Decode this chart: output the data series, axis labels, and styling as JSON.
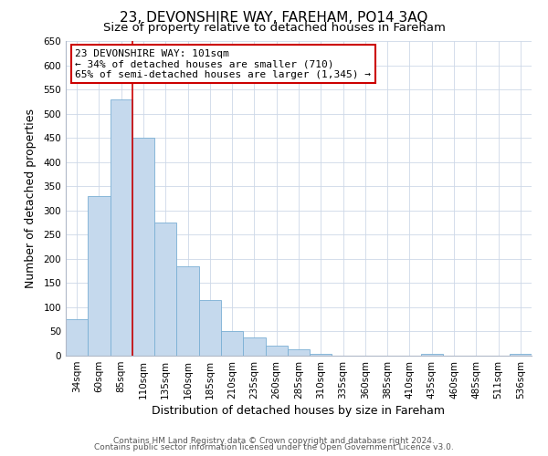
{
  "title": "23, DEVONSHIRE WAY, FAREHAM, PO14 3AQ",
  "subtitle": "Size of property relative to detached houses in Fareham",
  "xlabel": "Distribution of detached houses by size in Fareham",
  "ylabel": "Number of detached properties",
  "bar_labels": [
    "34sqm",
    "60sqm",
    "85sqm",
    "110sqm",
    "135sqm",
    "160sqm",
    "185sqm",
    "210sqm",
    "235sqm",
    "260sqm",
    "285sqm",
    "310sqm",
    "335sqm",
    "360sqm",
    "385sqm",
    "410sqm",
    "435sqm",
    "460sqm",
    "485sqm",
    "511sqm",
    "536sqm"
  ],
  "bar_values": [
    75,
    330,
    530,
    450,
    275,
    185,
    115,
    50,
    37,
    20,
    13,
    3,
    0,
    0,
    0,
    0,
    3,
    0,
    0,
    0,
    3
  ],
  "bar_color": "#c5d9ed",
  "bar_edge_color": "#7aafd4",
  "marker_label": "23 DEVONSHIRE WAY: 101sqm",
  "annotation_line1": "← 34% of detached houses are smaller (710)",
  "annotation_line2": "65% of semi-detached houses are larger (1,345) →",
  "annotation_box_color": "#ffffff",
  "annotation_box_edge": "#cc0000",
  "marker_line_color": "#cc0000",
  "ylim": [
    0,
    650
  ],
  "yticks": [
    0,
    50,
    100,
    150,
    200,
    250,
    300,
    350,
    400,
    450,
    500,
    550,
    600,
    650
  ],
  "footer_line1": "Contains HM Land Registry data © Crown copyright and database right 2024.",
  "footer_line2": "Contains public sector information licensed under the Open Government Licence v3.0.",
  "background_color": "#ffffff",
  "grid_color": "#cdd8e8",
  "title_fontsize": 11,
  "subtitle_fontsize": 9.5,
  "axis_label_fontsize": 9,
  "tick_fontsize": 7.5,
  "footer_fontsize": 6.5
}
